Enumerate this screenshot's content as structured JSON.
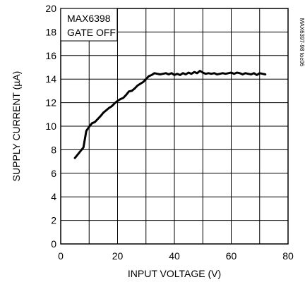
{
  "chart_data": {
    "type": "line",
    "xlabel": "INPUT VOLTAGE (V)",
    "ylabel": "SUPPLY CURRENT (µA)",
    "xlim": [
      0,
      80
    ],
    "ylim": [
      0,
      20
    ],
    "x_ticks": [
      0,
      20,
      40,
      60,
      80
    ],
    "y_ticks": [
      0,
      2,
      4,
      6,
      8,
      10,
      12,
      14,
      16,
      18,
      20
    ],
    "grid": true,
    "legend_lines": [
      "MAX6398",
      "GATE OFF"
    ],
    "side_note": "MAX6397-98 toc06",
    "series": [
      {
        "color": "#000000",
        "x": [
          5,
          6,
          7,
          8,
          9,
          10,
          11,
          12,
          13,
          14,
          15,
          16,
          17,
          18,
          19,
          20,
          21,
          22,
          23,
          24,
          25,
          26,
          27,
          28,
          29,
          30,
          31,
          32,
          33,
          34,
          35,
          36,
          37,
          38,
          39,
          40,
          41,
          42,
          43,
          44,
          45,
          46,
          47,
          48,
          49,
          50,
          51,
          52,
          53,
          54,
          55,
          56,
          57,
          58,
          59,
          60,
          61,
          62,
          63,
          64,
          65,
          66,
          67,
          68,
          69,
          70,
          71,
          72
        ],
        "y": [
          7.3,
          7.6,
          7.9,
          8.2,
          9.6,
          9.95,
          10.25,
          10.35,
          10.6,
          10.85,
          11.15,
          11.35,
          11.55,
          11.7,
          11.95,
          12.15,
          12.3,
          12.4,
          12.65,
          12.95,
          13.0,
          13.2,
          13.45,
          13.6,
          13.75,
          14.0,
          14.25,
          14.35,
          14.5,
          14.45,
          14.4,
          14.45,
          14.5,
          14.4,
          14.5,
          14.35,
          14.45,
          14.35,
          14.5,
          14.4,
          14.55,
          14.45,
          14.6,
          14.5,
          14.7,
          14.55,
          14.45,
          14.5,
          14.45,
          14.5,
          14.4,
          14.45,
          14.5,
          14.45,
          14.5,
          14.55,
          14.45,
          14.55,
          14.5,
          14.4,
          14.5,
          14.45,
          14.4,
          14.5,
          14.35,
          14.5,
          14.45,
          14.4
        ]
      }
    ]
  }
}
